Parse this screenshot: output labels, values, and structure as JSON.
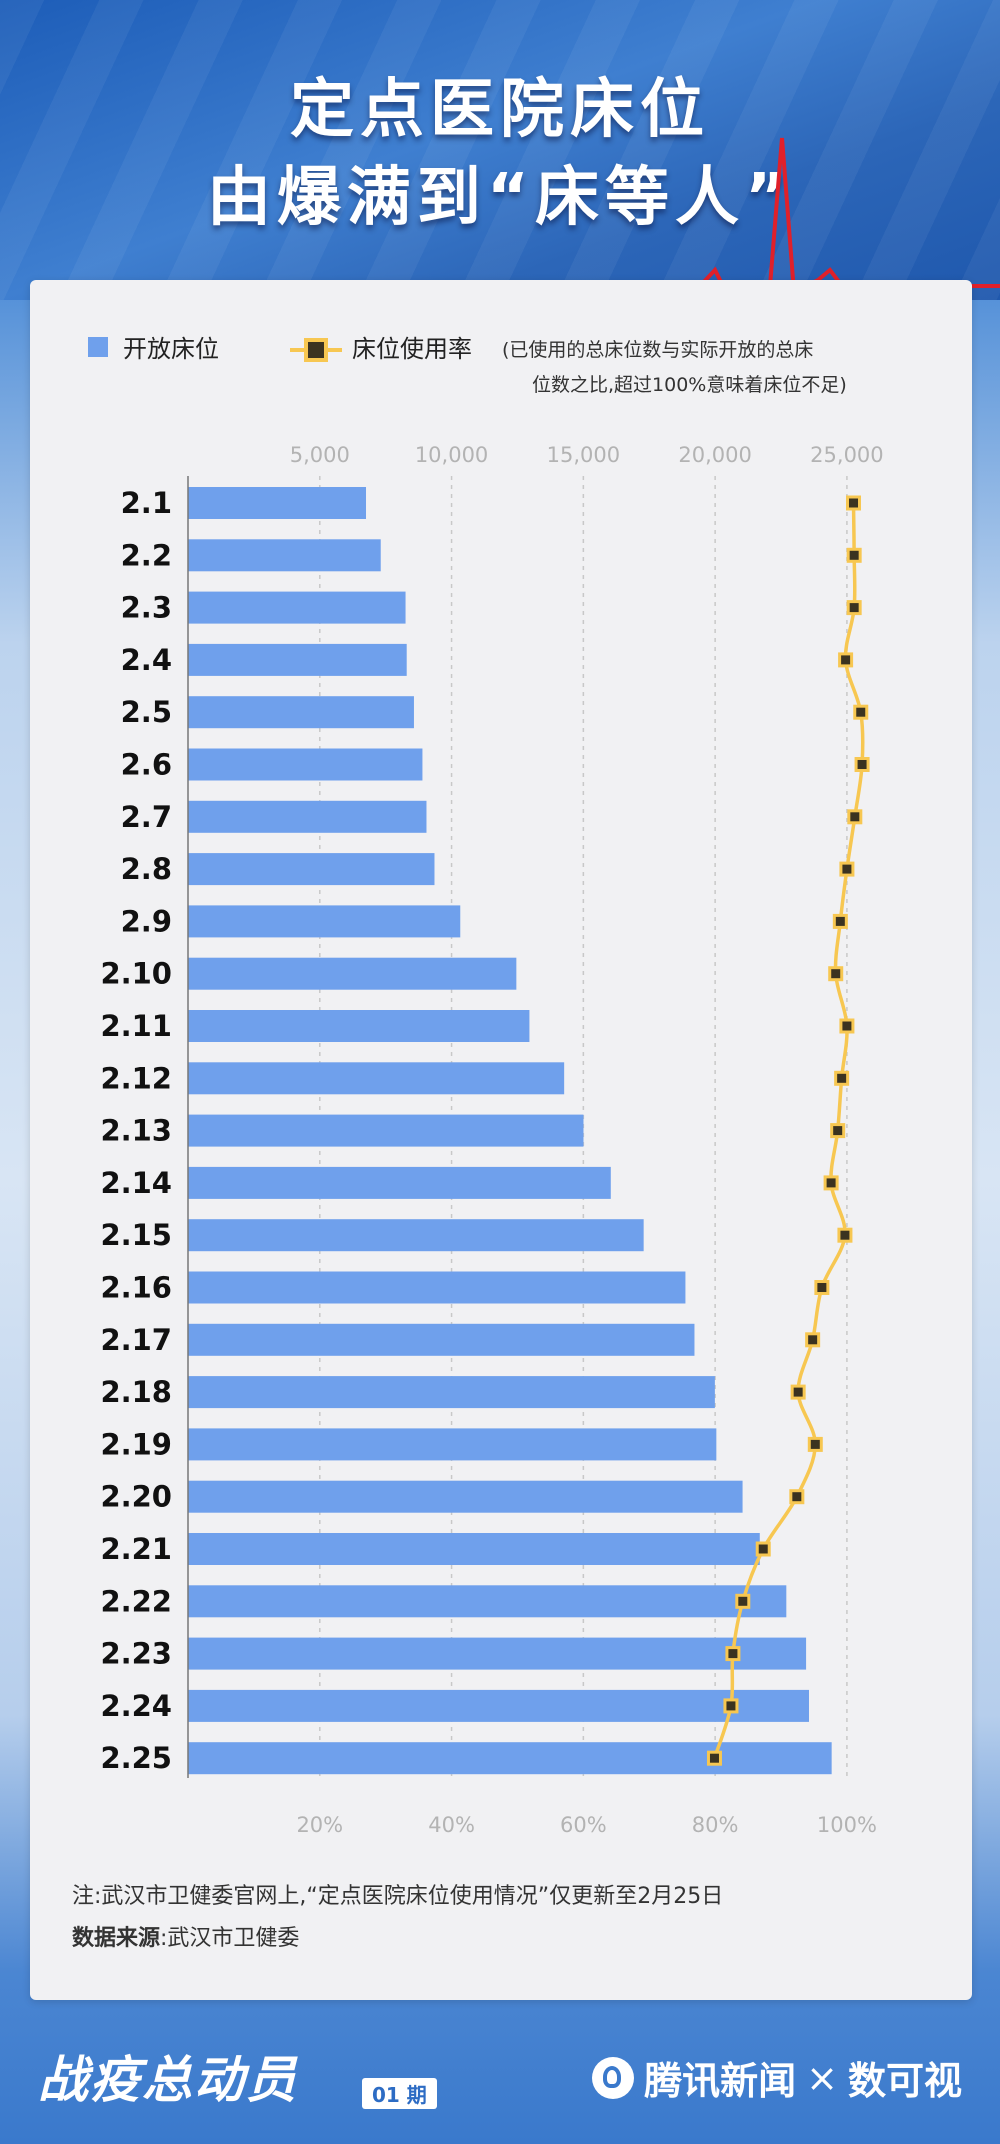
{
  "header": {
    "title_line1": "定点医院床位",
    "title_line2": "由爆满到“床等人”"
  },
  "legend": {
    "bar_label": "开放床位",
    "line_label": "床位使用率",
    "line_note_1": "(已使用的总床位数与实际开放的总床",
    "line_note_2": "位数之比,超过100%意味着床位不足)"
  },
  "colors": {
    "bar": "#6fa0ec",
    "line": "#f7c751",
    "marker": "#3b3320",
    "grid": "#c8c8c8",
    "brand_blue": "#3a79cc"
  },
  "chart_data": {
    "type": "bar",
    "orientation": "horizontal",
    "categories": [
      "2.1",
      "2.2",
      "2.3",
      "2.4",
      "2.5",
      "2.6",
      "2.7",
      "2.8",
      "2.9",
      "2.10",
      "2.11",
      "2.12",
      "2.13",
      "2.14",
      "2.15",
      "2.16",
      "2.17",
      "2.18",
      "2.19",
      "2.20",
      "2.21",
      "2.22",
      "2.23",
      "2.24",
      "2.25"
    ],
    "series": [
      {
        "name": "开放床位",
        "type": "bar",
        "axis": "top",
        "values": [
          6754,
          7312,
          8254,
          8298,
          8573,
          8895,
          9048,
          9352,
          10330,
          12458,
          12954,
          14272,
          15005,
          16041,
          17288,
          18873,
          19216,
          19990,
          20046,
          21041,
          21694,
          22701,
          23451,
          23561,
          24421
        ]
      },
      {
        "name": "床位使用率",
        "type": "line",
        "axis": "bottom",
        "unit": "%",
        "values": [
          101,
          101.1,
          101.1,
          99.8,
          102.1,
          102.3,
          101.2,
          100,
          99,
          98.3,
          100,
          99.2,
          98.6,
          97.6,
          99.7,
          96.2,
          94.8,
          92.6,
          95.2,
          92.4,
          87.3,
          84.2,
          82.7,
          82.4,
          79.9
        ]
      }
    ],
    "top_axis": {
      "ticks": [
        "5,000",
        "10,000",
        "15,000",
        "20,000",
        "25,000"
      ],
      "tick_values": [
        5000,
        10000,
        15000,
        20000,
        25000
      ],
      "range": [
        0,
        25800
      ]
    },
    "bottom_axis": {
      "ticks": [
        "20%",
        "40%",
        "60%",
        "80%",
        "100%"
      ],
      "tick_values": [
        20,
        40,
        60,
        80,
        100
      ],
      "range": [
        0,
        103.2
      ]
    },
    "grid": true,
    "legend_position": "top"
  },
  "footer": {
    "note": "注:武汉市卫健委官网上,“定点医院床位使用情况”仅更新至2月25日",
    "source_label": "数据来源",
    "source_value": ":武汉市卫健委",
    "series_title": "战疫总动员",
    "issue": "01 期",
    "brand": "腾讯新闻",
    "cross": "×",
    "partner": "数可视"
  }
}
